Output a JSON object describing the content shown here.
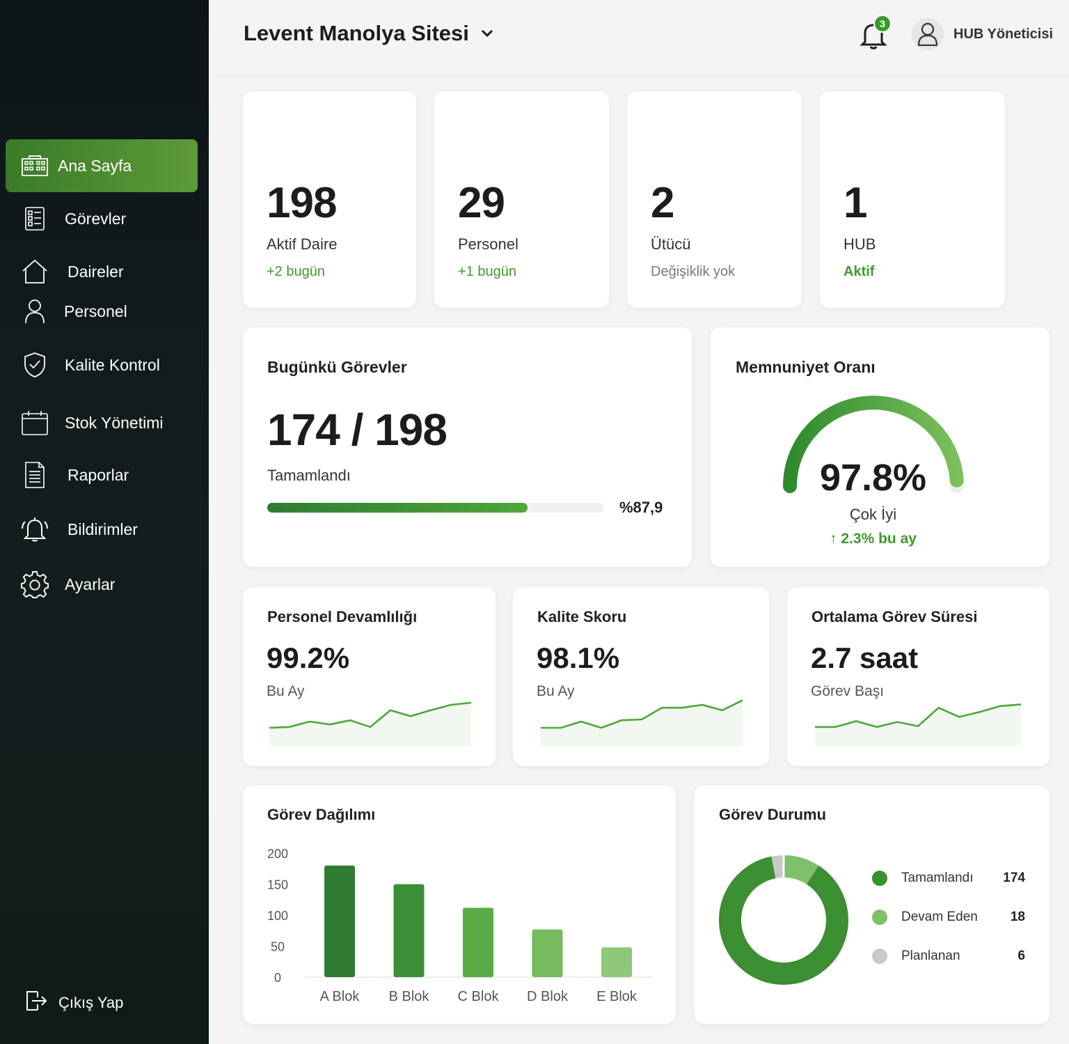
{
  "sidebar": {
    "items": [
      {
        "label": "Ana Sayfa",
        "icon": "building-icon"
      },
      {
        "label": "Görevler",
        "icon": "tasks-icon"
      },
      {
        "label": "Daireler",
        "icon": "home-icon"
      },
      {
        "label": "Personel",
        "icon": "user-icon"
      },
      {
        "label": "Kalite Kontrol",
        "icon": "shield-check-icon"
      },
      {
        "label": "Stok Yönetimi",
        "icon": "calendar-icon"
      },
      {
        "label": "Raporlar",
        "icon": "report-icon"
      },
      {
        "label": "Bildirimler",
        "icon": "bell-icon"
      },
      {
        "label": "Ayarlar",
        "icon": "gear-icon"
      }
    ],
    "active": "Ana Sayfa",
    "logout_label": "Çıkış Yap"
  },
  "header": {
    "site_name": "Levent Manolya Sitesi",
    "notification_count": "3",
    "user_name": "HUB Yöneticisi"
  },
  "stats": [
    {
      "value": "198",
      "label": "Aktif Daire",
      "sub": "+2 bugün",
      "sub_color": "green"
    },
    {
      "value": "29",
      "label": "Personel",
      "sub": "+1 bugün",
      "sub_color": "green"
    },
    {
      "value": "2",
      "label": "Ütücü",
      "sub": "Değişiklik yok",
      "sub_color": "grey"
    },
    {
      "value": "1",
      "label": "HUB",
      "sub": "Aktif",
      "sub_color": "green"
    }
  ],
  "today_tasks": {
    "title": "Bugünkü Görevler",
    "value": "174 / 198",
    "label": "Tamamlandı",
    "percent_label": "%87,9",
    "progress": 0.879
  },
  "satisfaction": {
    "title": "Memnuniyet Oranı",
    "value": "97.8%",
    "label": "Çok İyi",
    "change": "↑ 2.3% bu ay",
    "gauge_fraction": 0.978
  },
  "metrics": [
    {
      "title": "Personel Devamlılığı",
      "value": "99.2%",
      "sub": "Bu Ay",
      "trend": [
        3,
        3.2,
        4.5,
        3.8,
        4.8,
        3.2,
        7.2,
        5.8,
        7.2,
        8.5,
        9
      ]
    },
    {
      "title": "Kalite Skoru",
      "value": "98.1%",
      "sub": "Bu Ay",
      "trend": [
        3,
        3,
        4.5,
        3,
        4.8,
        5,
        7.8,
        7.8,
        8.5,
        7.2,
        9.6
      ]
    },
    {
      "title": "Ortalama Görev Süresi",
      "value": "2.7 saat",
      "sub": "Görev Başı",
      "trend": [
        3.2,
        3.2,
        4.6,
        3.2,
        4.4,
        3.4,
        7.8,
        5.6,
        6.8,
        8.2,
        8.6
      ]
    }
  ],
  "colors": {
    "accent": "#3f9a2e",
    "accent_dark": "#2f7d33",
    "accent_light": "#7fbf63",
    "sidebar_bg": "#111a1c",
    "grey_slice": "#c9c9c9"
  },
  "chart_data": [
    {
      "type": "bar",
      "title": "Görev Dağılımı",
      "categories": [
        "A Blok",
        "B Blok",
        "C Blok",
        "D Blok",
        "E Blok"
      ],
      "values": [
        180,
        150,
        112,
        77,
        48
      ],
      "ylim": [
        0,
        200
      ],
      "yticks": [
        "200",
        "150",
        "100",
        "50",
        "0"
      ],
      "colors": [
        "#2f7d33",
        "#3b8f36",
        "#5aac46",
        "#77bb5f",
        "#8ec878"
      ]
    },
    {
      "type": "pie",
      "title": "Görev Durumu",
      "series": [
        {
          "name": "Tamamlandı",
          "value": 174,
          "color": "#3c8f33"
        },
        {
          "name": "Devam Eden",
          "value": 18,
          "color": "#7fc06a"
        },
        {
          "name": "Planlanan",
          "value": 6,
          "color": "#c9c9c9"
        }
      ]
    }
  ]
}
